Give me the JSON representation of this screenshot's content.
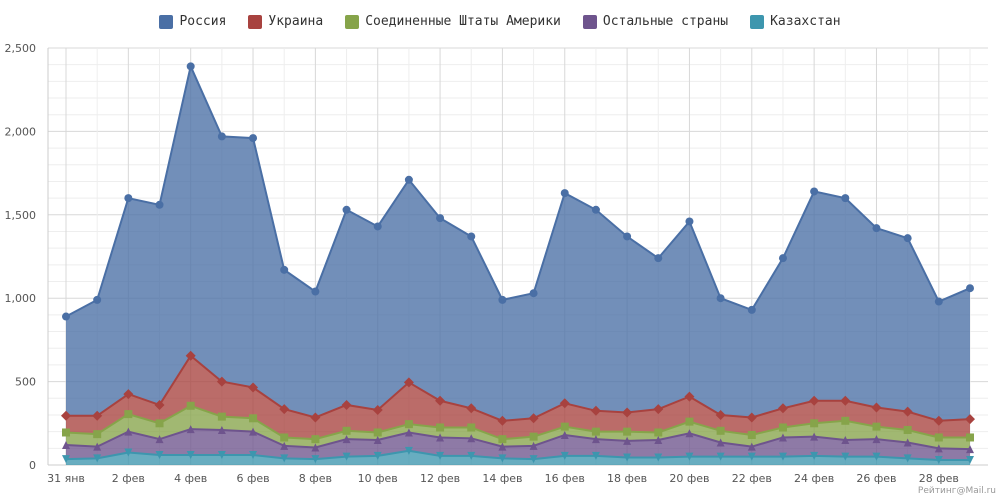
{
  "legend": [
    {
      "name": "Россия",
      "color": "#4a6fa5"
    },
    {
      "name": "Украина",
      "color": "#a8423f"
    },
    {
      "name": "Соединенные Штаты Америки",
      "color": "#86a44a"
    },
    {
      "name": "Остальные страны",
      "color": "#6e548d"
    },
    {
      "name": "Казахстан",
      "color": "#3d96ae"
    }
  ],
  "watermark": "Рейтинг@Mail.ru",
  "chart_data": {
    "type": "area",
    "stacked": true,
    "x_labels": [
      "31 янв",
      "2 фев",
      "4 фев",
      "6 фев",
      "8 фев",
      "10 фев",
      "12 фев",
      "14 фев",
      "16 фев",
      "18 фев",
      "20 фев",
      "22 фев",
      "24 фев",
      "26 фев",
      "28 фев"
    ],
    "x_label_every": 2,
    "y_ticks": [
      "0",
      "500",
      "1,000",
      "1,500",
      "2,000",
      "2,500"
    ],
    "ylim": [
      0,
      2500
    ],
    "grid": true,
    "legend_position": "top-center",
    "stack_totals": [
      {
        "name": "Россия",
        "values": [
          890,
          990,
          1600,
          1560,
          2390,
          1970,
          1960,
          1170,
          1040,
          1530,
          1430,
          1710,
          1480,
          1370,
          990,
          1030,
          1630,
          1530,
          1370,
          1240,
          1460,
          1000,
          930,
          1240,
          1640,
          1600,
          1420,
          1360,
          980,
          1060
        ]
      },
      {
        "name": "Украина",
        "values": [
          295,
          295,
          425,
          360,
          655,
          500,
          465,
          335,
          285,
          360,
          330,
          495,
          385,
          340,
          265,
          280,
          370,
          325,
          315,
          335,
          410,
          300,
          285,
          340,
          385,
          385,
          345,
          320,
          265,
          275
        ]
      },
      {
        "name": "Соединенные Штаты Америки",
        "values": [
          195,
          185,
          305,
          250,
          355,
          290,
          280,
          165,
          155,
          205,
          195,
          245,
          225,
          225,
          155,
          170,
          230,
          200,
          200,
          195,
          260,
          205,
          180,
          225,
          250,
          265,
          230,
          210,
          165,
          165
        ]
      },
      {
        "name": "Остальные страны",
        "values": [
          120,
          110,
          200,
          155,
          215,
          210,
          200,
          115,
          105,
          155,
          150,
          195,
          165,
          160,
          110,
          115,
          180,
          155,
          145,
          150,
          190,
          135,
          110,
          165,
          170,
          150,
          155,
          135,
          100,
          95
        ]
      },
      {
        "name": "Казахстан",
        "values": [
          35,
          40,
          75,
          60,
          60,
          60,
          60,
          40,
          35,
          50,
          55,
          85,
          55,
          55,
          40,
          35,
          55,
          55,
          45,
          45,
          50,
          50,
          50,
          50,
          55,
          50,
          50,
          40,
          30,
          30
        ]
      }
    ]
  }
}
